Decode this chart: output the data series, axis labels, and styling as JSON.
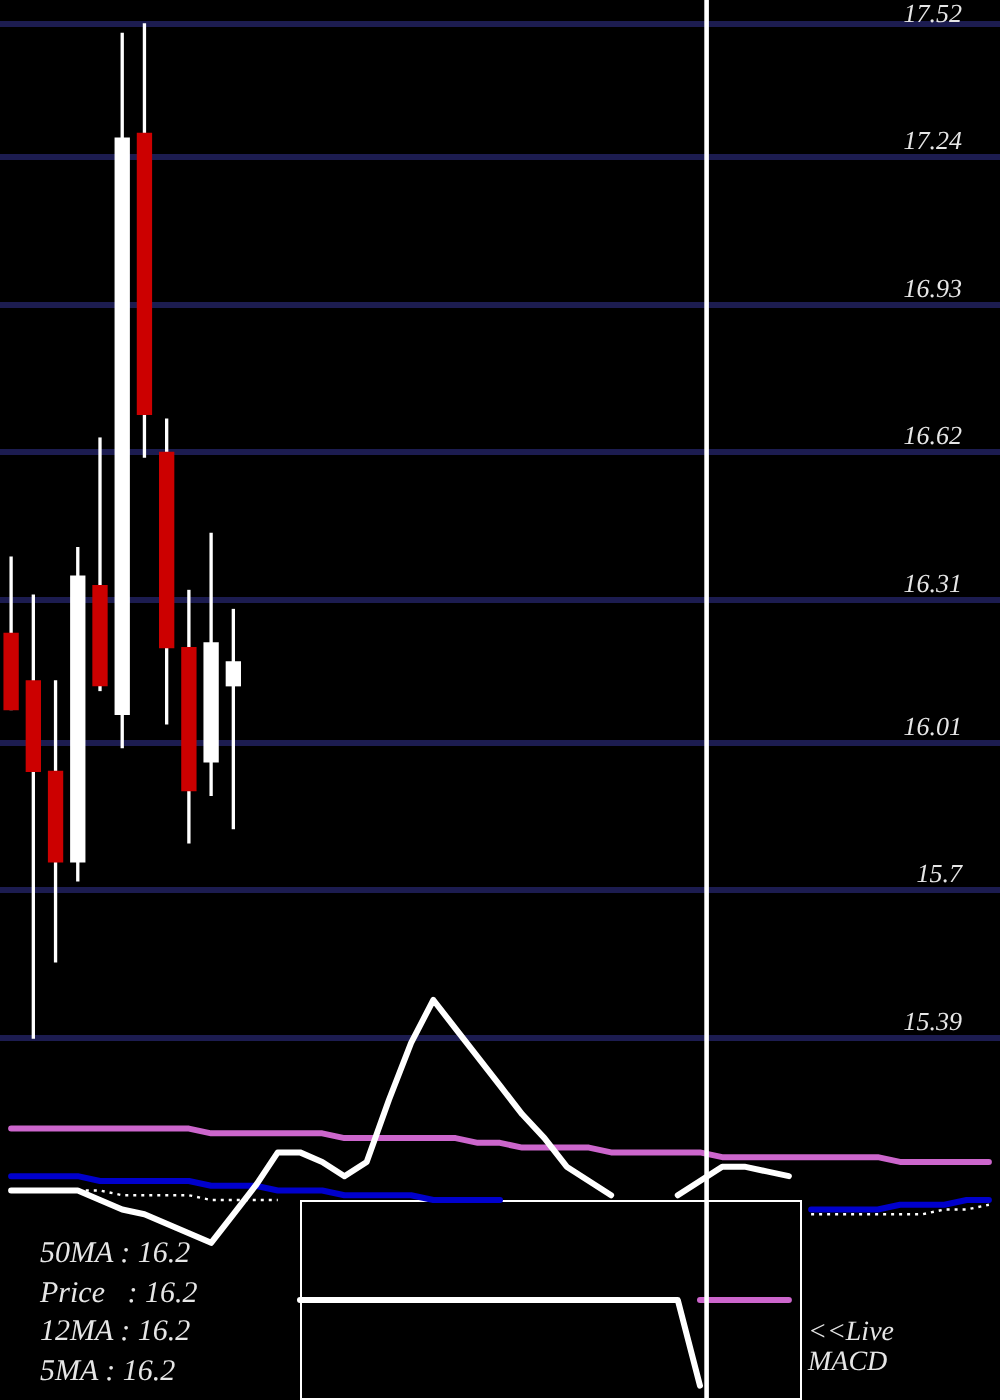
{
  "chart_data": [
    {
      "type": "candlestick",
      "categories": [
        null,
        null,
        null,
        null,
        null,
        null,
        null,
        null,
        null,
        null,
        null,
        null,
        null,
        null,
        null,
        null,
        null,
        null,
        null,
        null,
        null,
        null,
        null,
        null,
        null,
        null,
        null,
        null,
        null,
        null,
        null,
        null,
        null,
        null,
        null,
        null,
        null,
        null,
        null,
        null,
        null,
        null,
        null,
        null,
        null
      ],
      "ohlc": [
        [
          16.24,
          16.4,
          16.08,
          16.08
        ],
        [
          16.14,
          16.32,
          15.39,
          15.95
        ],
        [
          15.95,
          16.14,
          15.55,
          15.76
        ],
        [
          15.76,
          16.42,
          15.72,
          16.36
        ],
        [
          16.34,
          16.65,
          16.12,
          16.13
        ],
        [
          16.07,
          17.5,
          16.0,
          17.28
        ],
        [
          17.29,
          17.52,
          16.61,
          16.7
        ],
        [
          16.62,
          16.69,
          16.05,
          16.21
        ],
        [
          16.21,
          16.33,
          15.8,
          15.91
        ],
        [
          15.97,
          16.45,
          15.9,
          16.22
        ],
        [
          16.13,
          16.29,
          15.83,
          16.18
        ],
        null,
        null,
        null,
        null,
        null,
        null,
        null,
        null,
        null,
        null,
        null,
        null,
        null,
        null,
        null,
        null,
        null,
        null,
        null,
        null,
        null,
        null,
        null,
        null,
        null,
        null,
        null,
        null,
        null,
        null,
        null,
        null,
        null,
        null
      ],
      "colors": [
        "#cc0000",
        "#cc0000",
        "#cc0000",
        "#ffffff",
        "#cc0000",
        "#ffffff",
        "#cc0000",
        "#cc0000",
        "#cc0000",
        "#ffffff",
        "#ffffff",
        null,
        null,
        null,
        null,
        null,
        null,
        null,
        null,
        null,
        null,
        null,
        null,
        null,
        null,
        null,
        null,
        null,
        null,
        null,
        null,
        null,
        null,
        null,
        null,
        null,
        null,
        null,
        null,
        null,
        null,
        null,
        null,
        null,
        null
      ],
      "series": [
        {
          "type": "line",
          "color": "#ffffff",
          "values": [
            15.07,
            15.07,
            15.07,
            15.07,
            15.05,
            15.03,
            15.02,
            15.0,
            14.98,
            14.96,
            15.02,
            15.08,
            15.15,
            15.15,
            15.13,
            15.1,
            15.13,
            15.26,
            15.38,
            15.47,
            15.41,
            15.35,
            15.29,
            15.23,
            15.18,
            15.12,
            15.09,
            15.06,
            null,
            null,
            15.06,
            15.09,
            15.12,
            15.12,
            15.11,
            15.1,
            null,
            null,
            null,
            null,
            null,
            null,
            null,
            null,
            null
          ]
        },
        {
          "type": "line",
          "color": "#cc66cc",
          "values": [
            15.2,
            15.2,
            15.2,
            15.2,
            15.2,
            15.2,
            15.2,
            15.2,
            15.2,
            15.19,
            15.19,
            15.19,
            15.19,
            15.19,
            15.19,
            15.18,
            15.18,
            15.18,
            15.18,
            15.18,
            15.18,
            15.17,
            15.17,
            15.16,
            15.16,
            15.16,
            15.16,
            15.15,
            15.15,
            15.15,
            15.15,
            15.15,
            15.14,
            15.14,
            15.14,
            15.14,
            15.14,
            15.14,
            15.14,
            15.14,
            15.13,
            15.13,
            15.13,
            15.13,
            15.13
          ]
        },
        {
          "type": "line",
          "color": "#0000cc",
          "values": [
            15.1,
            15.1,
            15.1,
            15.1,
            15.09,
            15.09,
            15.09,
            15.09,
            15.09,
            15.08,
            15.08,
            15.08,
            15.07,
            15.07,
            15.07,
            15.06,
            15.06,
            15.06,
            15.06,
            15.05,
            15.05,
            15.05,
            15.05,
            null,
            null,
            null,
            null,
            null,
            null,
            null,
            null,
            null,
            null,
            null,
            null,
            null,
            15.03,
            15.03,
            15.03,
            15.03,
            15.04,
            15.04,
            15.04,
            15.05,
            15.05
          ]
        },
        {
          "type": "line",
          "color": "#ffffff",
          "line_style": "dotted",
          "values": [
            null,
            null,
            null,
            15.07,
            15.07,
            15.06,
            15.06,
            15.06,
            15.06,
            15.05,
            15.05,
            15.05,
            15.05,
            null,
            null,
            null,
            null,
            null,
            null,
            null,
            null,
            null,
            null,
            null,
            null,
            null,
            null,
            null,
            null,
            null,
            null,
            null,
            null,
            null,
            null,
            null,
            15.02,
            15.02,
            15.02,
            15.02,
            15.02,
            15.02,
            15.03,
            15.03,
            15.04
          ]
        },
        {
          "type": "line",
          "color": "#ffffff",
          "values": [
            null,
            null,
            null,
            null,
            null,
            null,
            null,
            null,
            null,
            null,
            null,
            null,
            null,
            14.84,
            14.84,
            14.84,
            14.84,
            14.84,
            14.84,
            14.84,
            14.84,
            14.84,
            14.84,
            14.84,
            14.84,
            14.84,
            14.84,
            14.84,
            14.84,
            14.84,
            14.84,
            14.66,
            null,
            null,
            null,
            null,
            null,
            null,
            null,
            null,
            null,
            null,
            null,
            null,
            null
          ]
        },
        {
          "type": "line",
          "color": "#cc66cc",
          "values": [
            null,
            null,
            null,
            null,
            null,
            null,
            null,
            null,
            null,
            null,
            null,
            null,
            null,
            null,
            null,
            null,
            null,
            null,
            null,
            null,
            null,
            null,
            null,
            null,
            null,
            null,
            null,
            null,
            null,
            null,
            null,
            14.84,
            14.84,
            14.84,
            14.84,
            14.84,
            null,
            null,
            null,
            null,
            null,
            null,
            null,
            null,
            null
          ]
        }
      ],
      "ylim": [
        14.63,
        17.57
      ],
      "yticks": [
        15.39,
        15.7,
        16.01,
        16.31,
        16.62,
        16.93,
        17.24,
        17.52
      ],
      "grid": "y",
      "tick_labels": "y",
      "marker": "none",
      "annotations": [
        "50MA : 16.2",
        "Price   : 16.2",
        "12MA : 16.2",
        "5MA : 16.2",
        "<<Live MACD"
      ]
    }
  ]
}
